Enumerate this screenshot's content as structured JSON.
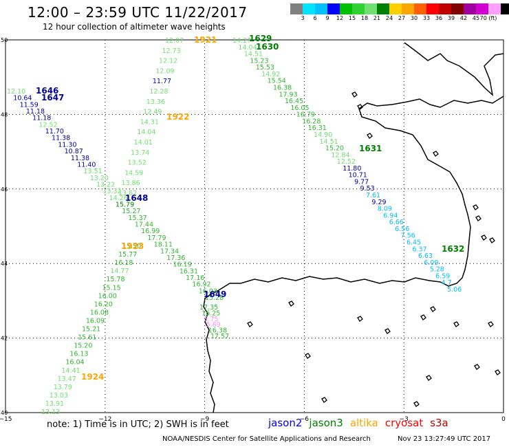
{
  "header": {
    "title": "12:00 – 23:59 UTC 11/22/2017",
    "subtitle": "12 hour collection of altimeter wave heights"
  },
  "legend": {
    "colors": [
      "#808080",
      "#00e5ff",
      "#00bfff",
      "#0000ff",
      "#00c000",
      "#30d030",
      "#70e070",
      "#008000",
      "#ffd000",
      "#ffa500",
      "#ff6000",
      "#ff0000",
      "#c00000",
      "#800000",
      "#a000a0",
      "#d000d0",
      "#ffa0ff",
      "#000000"
    ],
    "labels": [
      "3",
      "6",
      "9",
      "12",
      "15",
      "18",
      "21",
      "24",
      "27",
      "30",
      "33",
      "36",
      "39",
      "42",
      "45",
      "70 (ft)"
    ]
  },
  "axes": {
    "x_ticks": [
      "−15",
      "−12",
      "−9",
      "−6",
      "−3",
      "0"
    ],
    "y_ticks": [
      "50",
      "48",
      "46",
      "44",
      "42",
      "40"
    ]
  },
  "tracks": [
    {
      "name": "track-west",
      "color": "#2db82d",
      "points": [
        {
          "t": "12.10",
          "c": "#70e070"
        },
        {
          "t": "10.64",
          "c": "#0000a0"
        },
        {
          "t": "11.59",
          "c": "#0000a0"
        },
        {
          "t": "11.18",
          "c": "#0000a0"
        },
        {
          "t": "11.18",
          "c": "#0000a0"
        },
        {
          "t": "12.52",
          "c": "#70e070"
        },
        {
          "t": "11.70",
          "c": "#0000a0"
        },
        {
          "t": "11.38",
          "c": "#0000a0"
        },
        {
          "t": "11.30",
          "c": "#0000a0"
        },
        {
          "t": "10.87",
          "c": "#0000a0"
        },
        {
          "t": "11.38",
          "c": "#0000a0"
        },
        {
          "t": "11.40",
          "c": "#0000a0"
        },
        {
          "t": "13.51",
          "c": "#70e070"
        },
        {
          "t": "13.20",
          "c": "#70e070"
        },
        {
          "t": "13.22",
          "c": "#70e070"
        },
        {
          "t": "13.32",
          "c": "#70e070"
        },
        {
          "t": "14.26",
          "c": "#70e070"
        },
        {
          "t": "15.79",
          "c": "#008000"
        },
        {
          "t": "15.27",
          "c": "#2db82d"
        },
        {
          "t": "15.37",
          "c": "#2db82d"
        },
        {
          "t": "17.44",
          "c": "#2db82d"
        },
        {
          "t": "16.99",
          "c": "#2db82d"
        },
        {
          "t": "17.79",
          "c": "#2db82d"
        },
        {
          "t": "18.11",
          "c": "#2db82d"
        },
        {
          "t": "17.34",
          "c": "#2db82d"
        },
        {
          "t": "17.36",
          "c": "#2db82d"
        },
        {
          "t": "16.19",
          "c": "#2db82d"
        },
        {
          "t": "16.31",
          "c": "#2db82d"
        },
        {
          "t": "17.16",
          "c": "#2db82d"
        },
        {
          "t": "16.92",
          "c": "#2db82d"
        },
        {
          "t": "16.03",
          "c": "#2db82d"
        },
        {
          "t": "15.28",
          "c": "#2db82d"
        }
      ]
    },
    {
      "name": "track-1921",
      "color": "#70e070",
      "points": [
        {
          "t": "12.07",
          "c": "#70e070"
        },
        {
          "t": "12.73",
          "c": "#70e070"
        },
        {
          "t": "12.12",
          "c": "#70e070"
        },
        {
          "t": "12.09",
          "c": "#70e070"
        },
        {
          "t": "11.77",
          "c": "#0000a0"
        },
        {
          "t": "12.28",
          "c": "#70e070"
        },
        {
          "t": "13.36",
          "c": "#70e070"
        },
        {
          "t": "12.49",
          "c": "#70e070"
        },
        {
          "t": "14.31",
          "c": "#70e070"
        },
        {
          "t": "14.04",
          "c": "#70e070"
        },
        {
          "t": "14.01",
          "c": "#70e070"
        },
        {
          "t": "13.74",
          "c": "#70e070"
        },
        {
          "t": "13.52",
          "c": "#70e070"
        },
        {
          "t": "14.59",
          "c": "#70e070"
        },
        {
          "t": "13.86",
          "c": "#70e070"
        },
        {
          "t": "13.62",
          "c": "#70e070"
        }
      ]
    },
    {
      "name": "track-1924",
      "color": "#2db82d",
      "points": [
        {
          "t": "15.50",
          "c": "#2db82d"
        },
        {
          "t": "15.77",
          "c": "#2db82d"
        },
        {
          "t": "16.18",
          "c": "#2db82d"
        },
        {
          "t": "14.77",
          "c": "#70e070"
        },
        {
          "t": "15.78",
          "c": "#2db82d"
        },
        {
          "t": "15.15",
          "c": "#2db82d"
        },
        {
          "t": "16.00",
          "c": "#2db82d"
        },
        {
          "t": "16.20",
          "c": "#2db82d"
        },
        {
          "t": "16.08",
          "c": "#2db82d"
        },
        {
          "t": "16.09",
          "c": "#2db82d"
        },
        {
          "t": "15.21",
          "c": "#2db82d"
        },
        {
          "t": "15.61",
          "c": "#2db82d"
        },
        {
          "t": "15.20",
          "c": "#2db82d"
        },
        {
          "t": "16.13",
          "c": "#2db82d"
        },
        {
          "t": "16.04",
          "c": "#2db82d"
        },
        {
          "t": "14.41",
          "c": "#70e070"
        },
        {
          "t": "13.47",
          "c": "#70e070"
        },
        {
          "t": "13.79",
          "c": "#70e070"
        },
        {
          "t": "13.03",
          "c": "#70e070"
        },
        {
          "t": "13.91",
          "c": "#70e070"
        },
        {
          "t": "13.13",
          "c": "#70e070"
        }
      ]
    },
    {
      "name": "track-east",
      "color": "#2db82d",
      "points": [
        {
          "t": "14.27",
          "c": "#70e070"
        },
        {
          "t": "14.04",
          "c": "#70e070"
        },
        {
          "t": "14.51",
          "c": "#70e070"
        },
        {
          "t": "15.23",
          "c": "#2db82d"
        },
        {
          "t": "15.53",
          "c": "#2db82d"
        },
        {
          "t": "14.92",
          "c": "#70e070"
        },
        {
          "t": "15.54",
          "c": "#2db82d"
        },
        {
          "t": "16.38",
          "c": "#2db82d"
        },
        {
          "t": "17.93",
          "c": "#2db82d"
        },
        {
          "t": "16.45",
          "c": "#2db82d"
        },
        {
          "t": "16.05",
          "c": "#2db82d"
        },
        {
          "t": "16.79",
          "c": "#2db82d"
        },
        {
          "t": "16.28",
          "c": "#2db82d"
        },
        {
          "t": "16.31",
          "c": "#2db82d"
        },
        {
          "t": "14.90",
          "c": "#70e070"
        },
        {
          "t": "14.51",
          "c": "#70e070"
        },
        {
          "t": "15.20",
          "c": "#2db82d"
        },
        {
          "t": "12.84",
          "c": "#70e070"
        },
        {
          "t": "12.52",
          "c": "#70e070"
        },
        {
          "t": "11.80",
          "c": "#0000a0"
        },
        {
          "t": "10.71",
          "c": "#0000a0"
        },
        {
          "t": "9.77",
          "c": "#0000a0"
        },
        {
          "t": "9.53",
          "c": "#0000a0"
        },
        {
          "t": "7.61",
          "c": "#00bfff"
        },
        {
          "t": "9.29",
          "c": "#0000a0"
        },
        {
          "t": "8.09",
          "c": "#00bfff"
        },
        {
          "t": "6.94",
          "c": "#00bfff"
        },
        {
          "t": "6.66",
          "c": "#00bfff"
        },
        {
          "t": "6.56",
          "c": "#00bfff"
        },
        {
          "t": "7.56",
          "c": "#00bfff"
        },
        {
          "t": "6.45",
          "c": "#00bfff"
        },
        {
          "t": "6.37",
          "c": "#00bfff"
        },
        {
          "t": "6.63",
          "c": "#00bfff"
        },
        {
          "t": "6.09",
          "c": "#00bfff"
        },
        {
          "t": "5.28",
          "c": "#00bfff"
        },
        {
          "t": "6.59",
          "c": "#00bfff"
        },
        {
          "t": "4.7",
          "c": "#00bfff"
        },
        {
          "t": "5.06",
          "c": "#00bfff"
        }
      ]
    },
    {
      "name": "track-coast",
      "color": "#2db82d",
      "points": [
        {
          "t": "17.35",
          "c": "#2db82d"
        },
        {
          "t": "16.25",
          "c": "#2db82d"
        },
        {
          "t": "5.75",
          "c": "#ff90ff"
        },
        {
          "t": "5.89",
          "c": "#ff90ff"
        },
        {
          "t": "16.38",
          "c": "#2db82d"
        },
        {
          "t": "17.57",
          "c": "#2db82d"
        }
      ]
    }
  ],
  "times": [
    {
      "t": "1646",
      "c": "#0000a0"
    },
    {
      "t": "1647",
      "c": "#0000a0"
    },
    {
      "t": "1921",
      "c": "#ffa500"
    },
    {
      "t": "1922",
      "c": "#ffa500"
    },
    {
      "t": "1648",
      "c": "#0000a0"
    },
    {
      "t": "1923",
      "c": "#ffa500"
    },
    {
      "t": "1924",
      "c": "#ffa500"
    },
    {
      "t": "1629",
      "c": "#008000"
    },
    {
      "t": "1630",
      "c": "#008000"
    },
    {
      "t": "1631",
      "c": "#008000"
    },
    {
      "t": "1632",
      "c": "#008000"
    },
    {
      "t": "1649",
      "c": "#0000a0"
    }
  ],
  "footer": {
    "note": "note:  1) Time is in UTC;  2) SWH is in feet",
    "satellites": [
      {
        "name": "jason2",
        "color": "#0000ff"
      },
      {
        "name": "jason3",
        "color": "#008000"
      },
      {
        "name": "altika",
        "color": "#ffa500"
      },
      {
        "name": "cryosat",
        "color": "#ff0000"
      },
      {
        "name": "s3a",
        "color": "#c00000"
      }
    ],
    "credit": "NOAA/NESDIS Center for Satellite Applications and Research",
    "timestamp": "Nov 23 13:27:49 UTC 2017"
  }
}
